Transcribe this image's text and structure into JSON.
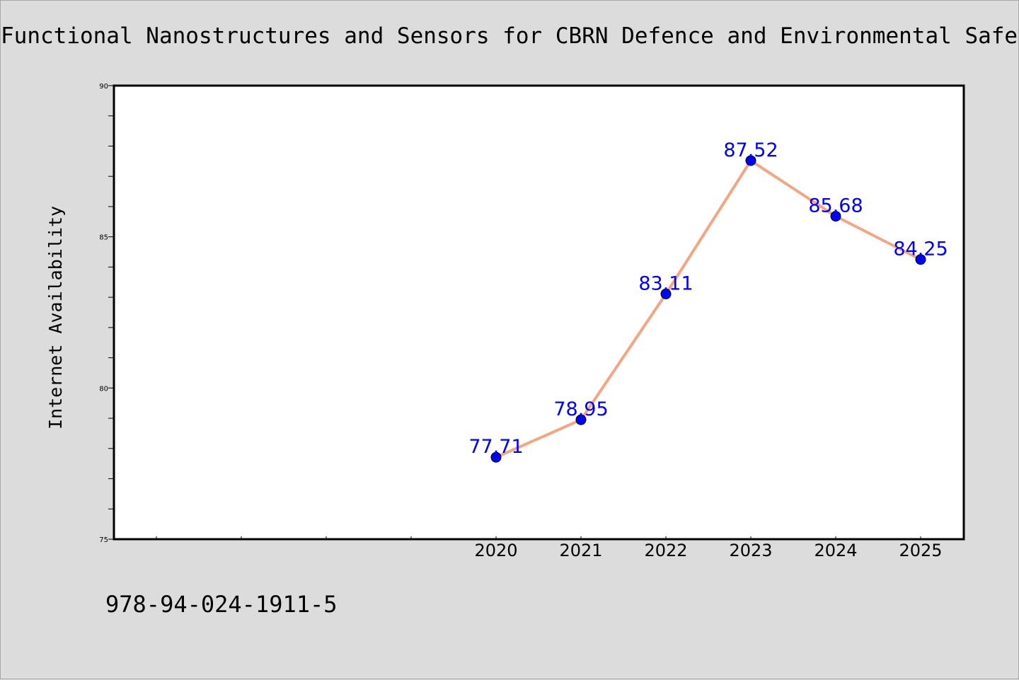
{
  "title": "Functional Nanostructures and Sensors for CBRN Defence and Environmental Safety",
  "footer_text": "978-94-024-1911-5",
  "colors": {
    "background": "#dcdcdc",
    "plot_background": "#ffffff",
    "line": "#f4a582",
    "marker": "#0000ff",
    "data_label": "#0000ff"
  },
  "chart_data": {
    "type": "line",
    "title": "Functional Nanostructures and Sensors for CBRN Defence and Environmental Safety",
    "xlabel": "",
    "ylabel": "Internet Availability",
    "x": [
      "2020",
      "2021",
      "2022",
      "2023",
      "2024",
      "2025"
    ],
    "series": [
      {
        "values": [
          77.71,
          78.95,
          83.11,
          87.52,
          85.68,
          84.25
        ]
      }
    ],
    "data_labels": [
      "77.71",
      "78.95",
      "83.11",
      "87.52",
      "85.68",
      "84.25"
    ],
    "ylim": [
      75,
      90
    ],
    "y_ticks": [
      75,
      80,
      85,
      90
    ],
    "y_minor_step": 1,
    "x_slots": 10,
    "grid": false,
    "legend": "none"
  }
}
